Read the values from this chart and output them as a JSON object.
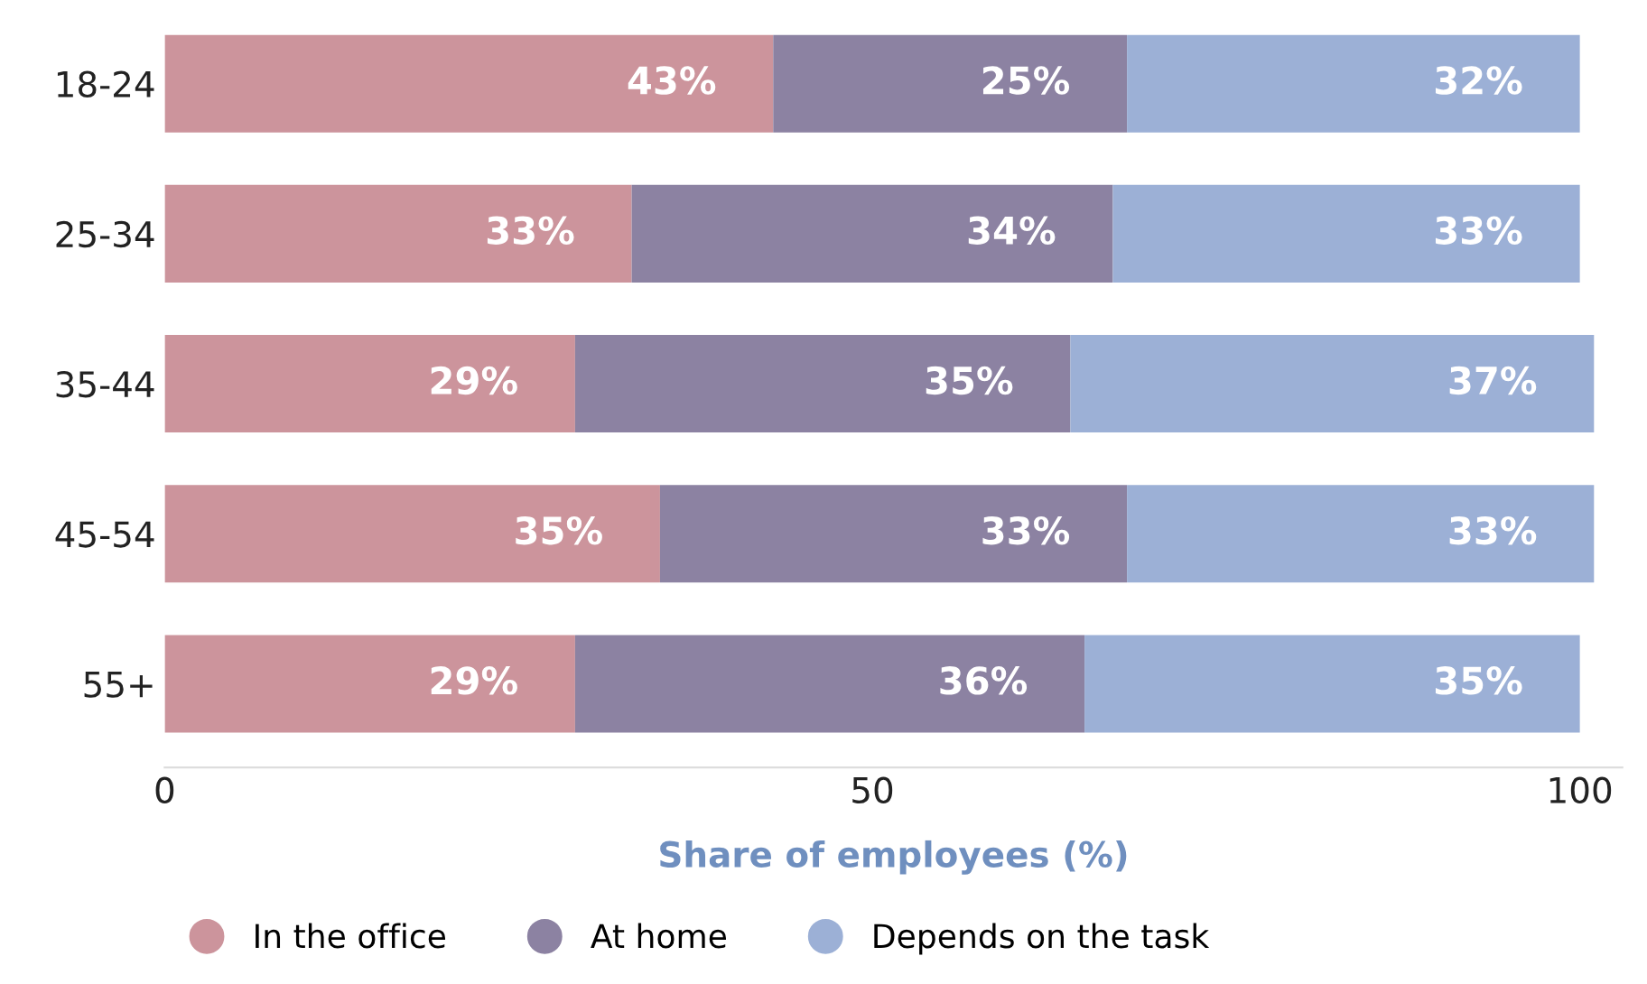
{
  "chart_data": {
    "type": "bar",
    "orientation": "horizontal",
    "stacked": true,
    "xlabel": "Share of employees (%)",
    "categories": [
      "18-24",
      "25-34",
      "35-44",
      "45-54",
      "55+"
    ],
    "series": [
      {
        "name": "In the office",
        "color": "#cc949c",
        "values": [
          43,
          33,
          29,
          35,
          29
        ],
        "value_labels": [
          "43%",
          "33%",
          "29%",
          "35%",
          "29%"
        ]
      },
      {
        "name": "At home",
        "color": "#8c82a2",
        "values": [
          25,
          34,
          35,
          33,
          36
        ],
        "value_labels": [
          "25%",
          "34%",
          "35%",
          "33%",
          "36%"
        ]
      },
      {
        "name": "Depends on the task",
        "color": "#9cb0d6",
        "values": [
          32,
          33,
          37,
          33,
          35
        ],
        "value_labels": [
          "32%",
          "33%",
          "37%",
          "33%",
          "35%"
        ]
      }
    ],
    "xlim": [
      0,
      103
    ],
    "xticks": [
      0,
      50,
      100
    ],
    "legend": "bottom",
    "grid": false
  }
}
